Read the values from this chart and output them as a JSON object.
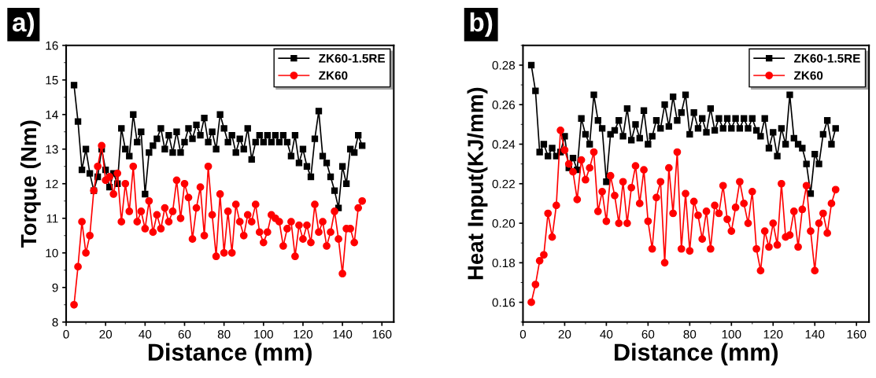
{
  "chart_data": [
    {
      "type": "line",
      "xlabel": "Distance (mm)",
      "ylabel": "Torque (Nm)",
      "annotations": [
        "a)"
      ],
      "xlim": [
        0,
        166
      ],
      "xticks": [
        0,
        20,
        40,
        60,
        80,
        100,
        120,
        140,
        160
      ],
      "ylim": [
        8,
        16
      ],
      "yticks": [
        8,
        9,
        10,
        11,
        12,
        13,
        14,
        15,
        16
      ],
      "legend": "top right",
      "grid": false,
      "x": [
        4,
        6,
        8,
        10,
        12,
        14,
        16,
        18,
        20,
        22,
        24,
        26,
        28,
        30,
        32,
        34,
        36,
        38,
        40,
        42,
        44,
        46,
        48,
        50,
        52,
        54,
        56,
        58,
        60,
        62,
        64,
        66,
        68,
        70,
        72,
        74,
        76,
        78,
        80,
        82,
        84,
        86,
        88,
        90,
        92,
        94,
        96,
        98,
        100,
        102,
        104,
        106,
        108,
        110,
        112,
        114,
        116,
        118,
        120,
        122,
        124,
        126,
        128,
        130,
        132,
        134,
        136,
        138,
        140,
        142,
        144,
        146,
        148,
        150
      ],
      "series": [
        {
          "name": "ZK60-1.5RE",
          "color": "#000000",
          "marker": "square",
          "values": [
            14.85,
            13.8,
            12.4,
            13.0,
            12.3,
            11.8,
            12.2,
            13.0,
            12.4,
            11.9,
            12.3,
            12.0,
            13.6,
            13.0,
            12.8,
            14.0,
            13.2,
            13.5,
            11.7,
            12.9,
            13.1,
            13.3,
            13.6,
            13.0,
            13.4,
            12.9,
            13.5,
            12.9,
            13.2,
            13.6,
            13.3,
            13.7,
            13.4,
            13.9,
            13.2,
            13.5,
            13.0,
            14.0,
            13.6,
            13.2,
            13.4,
            12.9,
            13.3,
            13.0,
            13.6,
            12.7,
            13.2,
            13.4,
            13.2,
            13.4,
            13.2,
            13.4,
            13.2,
            13.4,
            13.2,
            12.8,
            13.4,
            12.6,
            13.0,
            12.5,
            12.2,
            13.3,
            14.1,
            12.8,
            12.6,
            12.2,
            11.8,
            11.3,
            12.5,
            12.0,
            13.0,
            12.9,
            13.4,
            13.1
          ]
        },
        {
          "name": "ZK60",
          "color": "#ff0000",
          "marker": "circle",
          "values": [
            8.5,
            9.6,
            10.9,
            10.0,
            10.5,
            11.8,
            12.5,
            13.1,
            12.1,
            12.2,
            11.7,
            12.3,
            10.9,
            12.0,
            11.2,
            12.5,
            10.9,
            11.2,
            10.7,
            11.5,
            10.6,
            11.1,
            10.7,
            11.3,
            10.9,
            11.2,
            12.1,
            11.0,
            12.0,
            11.6,
            10.4,
            11.3,
            11.9,
            10.5,
            12.5,
            11.1,
            9.9,
            11.7,
            10.0,
            11.2,
            10.0,
            11.4,
            10.9,
            10.5,
            11.1,
            10.9,
            11.4,
            10.6,
            10.3,
            10.6,
            11.1,
            11.0,
            10.9,
            10.2,
            10.7,
            10.9,
            9.9,
            10.8,
            10.4,
            10.8,
            10.3,
            11.4,
            10.6,
            10.9,
            10.2,
            10.6,
            11.2,
            10.4,
            9.4,
            10.7,
            10.7,
            10.3,
            11.3,
            11.5
          ]
        }
      ]
    },
    {
      "type": "line",
      "xlabel": "Distance (mm)",
      "ylabel": "Heat Input(KJ/mm)",
      "annotations": [
        "b)"
      ],
      "xlim": [
        0,
        166
      ],
      "xticks": [
        0,
        20,
        40,
        60,
        80,
        100,
        120,
        140,
        160
      ],
      "ylim": [
        0.15,
        0.29
      ],
      "yticks": [
        {
          "value": 0.16,
          "label": "0.16"
        },
        {
          "value": 0.18,
          "label": "0.18"
        },
        {
          "value": 0.2,
          "label": "0.20"
        },
        {
          "value": 0.22,
          "label": "0.22"
        },
        {
          "value": 0.24,
          "label": "0.24"
        },
        {
          "value": 0.26,
          "label": "0.26"
        },
        {
          "value": 0.28,
          "label": "0.28"
        }
      ],
      "legend": "top right",
      "grid": false,
      "x": [
        4,
        6,
        8,
        10,
        12,
        14,
        16,
        18,
        20,
        22,
        24,
        26,
        28,
        30,
        32,
        34,
        36,
        38,
        40,
        42,
        44,
        46,
        48,
        50,
        52,
        54,
        56,
        58,
        60,
        62,
        64,
        66,
        68,
        70,
        72,
        74,
        76,
        78,
        80,
        82,
        84,
        86,
        88,
        90,
        92,
        94,
        96,
        98,
        100,
        102,
        104,
        106,
        108,
        110,
        112,
        114,
        116,
        118,
        120,
        122,
        124,
        126,
        128,
        130,
        132,
        134,
        136,
        138,
        140,
        142,
        144,
        146,
        148,
        150
      ],
      "series": [
        {
          "name": "ZK60-1.5RE",
          "color": "#000000",
          "marker": "square",
          "values": [
            0.28,
            0.267,
            0.236,
            0.24,
            0.234,
            0.238,
            0.234,
            0.236,
            0.244,
            0.228,
            0.233,
            0.227,
            0.253,
            0.245,
            0.24,
            0.265,
            0.252,
            0.248,
            0.221,
            0.245,
            0.247,
            0.252,
            0.244,
            0.258,
            0.242,
            0.25,
            0.243,
            0.257,
            0.24,
            0.244,
            0.252,
            0.248,
            0.26,
            0.249,
            0.264,
            0.252,
            0.256,
            0.265,
            0.245,
            0.256,
            0.248,
            0.253,
            0.246,
            0.258,
            0.247,
            0.253,
            0.248,
            0.253,
            0.248,
            0.253,
            0.248,
            0.253,
            0.248,
            0.253,
            0.247,
            0.244,
            0.253,
            0.238,
            0.246,
            0.234,
            0.248,
            0.24,
            0.265,
            0.243,
            0.24,
            0.238,
            0.23,
            0.215,
            0.235,
            0.23,
            0.245,
            0.252,
            0.24,
            0.248
          ]
        },
        {
          "name": "ZK60",
          "color": "#ff0000",
          "marker": "circle",
          "values": [
            0.16,
            0.169,
            0.181,
            0.184,
            0.205,
            0.193,
            0.209,
            0.247,
            0.237,
            0.23,
            0.226,
            0.212,
            0.232,
            0.222,
            0.228,
            0.236,
            0.206,
            0.216,
            0.201,
            0.224,
            0.214,
            0.2,
            0.221,
            0.2,
            0.218,
            0.229,
            0.21,
            0.227,
            0.201,
            0.187,
            0.213,
            0.221,
            0.18,
            0.228,
            0.205,
            0.236,
            0.187,
            0.215,
            0.186,
            0.211,
            0.204,
            0.192,
            0.206,
            0.187,
            0.209,
            0.205,
            0.219,
            0.202,
            0.196,
            0.208,
            0.221,
            0.21,
            0.2,
            0.216,
            0.187,
            0.176,
            0.196,
            0.188,
            0.2,
            0.189,
            0.22,
            0.193,
            0.194,
            0.206,
            0.188,
            0.207,
            0.219,
            0.196,
            0.176,
            0.2,
            0.205,
            0.195,
            0.21,
            0.217
          ]
        }
      ]
    }
  ]
}
